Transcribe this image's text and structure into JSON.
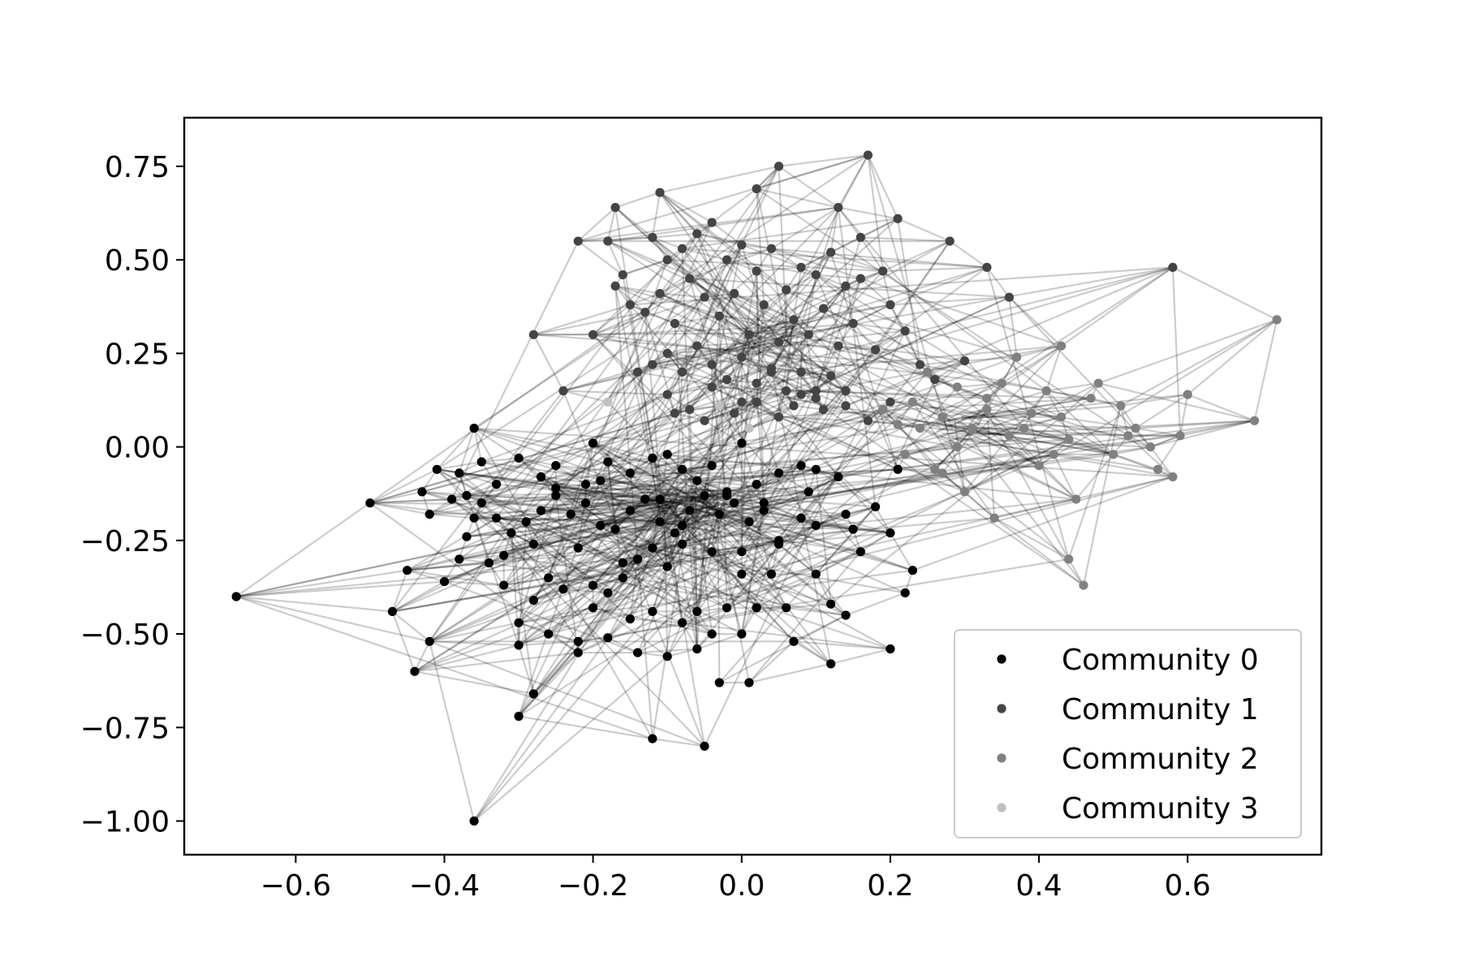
{
  "chart_data": {
    "type": "scatter",
    "subtype": "network-graph",
    "title": "",
    "xlabel": "",
    "ylabel": "",
    "xlim": [
      -0.75,
      0.78
    ],
    "ylim": [
      -1.09,
      0.88
    ],
    "xticks": [
      -0.6,
      -0.4,
      -0.2,
      0.0,
      0.2,
      0.4,
      0.6
    ],
    "xtick_labels": [
      "−0.6",
      "−0.4",
      "−0.2",
      "0.0",
      "0.2",
      "0.4",
      "0.6"
    ],
    "yticks": [
      0.75,
      0.5,
      0.25,
      0.0,
      -0.25,
      -0.5,
      -0.75,
      -1.0
    ],
    "ytick_labels": [
      "0.75",
      "0.50",
      "0.25",
      "0.00",
      "−0.25",
      "−0.50",
      "−0.75",
      "−1.00"
    ],
    "grid": false,
    "legend_position": "lower-right",
    "edge_color": "#000000",
    "series": [
      {
        "name": "Community 0",
        "color": "#000000",
        "x": [
          -0.68,
          -0.5,
          -0.36,
          -0.41,
          -0.38,
          -0.35,
          -0.33,
          -0.3,
          -0.27,
          -0.25,
          -0.21,
          -0.2,
          -0.18,
          -0.15,
          -0.12,
          -0.1,
          -0.08,
          -0.06,
          -0.04,
          -0.02,
          0.0,
          0.02,
          0.05,
          0.08,
          0.1,
          -0.42,
          -0.45,
          -0.47,
          -0.44,
          -0.42,
          -0.4,
          -0.37,
          -0.36,
          -0.34,
          -0.32,
          -0.3,
          -0.28,
          -0.26,
          -0.24,
          -0.22,
          -0.2,
          -0.18,
          -0.16,
          -0.14,
          -0.12,
          -0.1,
          -0.08,
          -0.06,
          -0.04,
          -0.02,
          0.0,
          0.02,
          0.04,
          0.06,
          0.08,
          0.1,
          0.12,
          0.14,
          0.16,
          0.18,
          0.2,
          0.22,
          0.23,
          -0.39,
          -0.37,
          -0.35,
          -0.33,
          -0.31,
          -0.29,
          -0.27,
          -0.25,
          -0.23,
          -0.21,
          -0.19,
          -0.17,
          -0.15,
          -0.13,
          -0.11,
          -0.09,
          -0.07,
          -0.05,
          -0.03,
          -0.01,
          0.01,
          0.03,
          0.05,
          -0.3,
          -0.28,
          -0.26,
          -0.22,
          -0.18,
          -0.14,
          -0.1,
          -0.06,
          -0.03,
          0.01,
          -0.12,
          -0.05,
          -0.36,
          -0.3,
          -0.22,
          -0.15,
          -0.08,
          0.0,
          0.07,
          0.12,
          0.14,
          0.15,
          0.2,
          -0.2,
          -0.16,
          -0.12,
          -0.08,
          -0.04,
          0.0,
          0.05,
          0.1,
          -0.43,
          -0.38,
          -0.32,
          -0.28,
          -0.25,
          -0.19,
          -0.11,
          -0.02,
          0.03,
          0.09,
          0.13,
          0.21
        ],
        "y": [
          -0.4,
          -0.15,
          0.05,
          -0.06,
          -0.07,
          -0.04,
          -0.1,
          -0.03,
          -0.08,
          -0.05,
          -0.1,
          0.01,
          -0.04,
          -0.07,
          -0.03,
          -0.02,
          -0.06,
          -0.09,
          -0.05,
          -0.12,
          0.01,
          -0.1,
          -0.07,
          -0.05,
          -0.06,
          -0.18,
          -0.33,
          -0.44,
          -0.6,
          -0.52,
          -0.36,
          -0.24,
          -0.19,
          -0.31,
          -0.37,
          -0.47,
          -0.41,
          -0.35,
          -0.38,
          -0.27,
          -0.43,
          -0.39,
          -0.35,
          -0.3,
          -0.44,
          -0.32,
          -0.21,
          -0.44,
          -0.5,
          -0.43,
          -0.34,
          -0.43,
          -0.34,
          -0.43,
          -0.19,
          -0.34,
          -0.42,
          -0.45,
          -0.28,
          -0.16,
          -0.54,
          -0.39,
          -0.33,
          -0.14,
          -0.13,
          -0.15,
          -0.19,
          -0.23,
          -0.2,
          -0.17,
          -0.13,
          -0.18,
          -0.15,
          -0.21,
          -0.22,
          -0.17,
          -0.14,
          -0.2,
          -0.23,
          -0.17,
          -0.13,
          -0.18,
          -0.15,
          -0.2,
          -0.17,
          -0.25,
          -0.72,
          -0.66,
          -0.5,
          -0.55,
          -0.51,
          -0.55,
          -0.56,
          -0.54,
          -0.63,
          -0.63,
          -0.78,
          -0.8,
          -1.0,
          -0.53,
          -0.52,
          -0.46,
          -0.47,
          -0.5,
          -0.52,
          -0.58,
          -0.18,
          -0.22,
          -0.23,
          -0.37,
          -0.31,
          -0.27,
          -0.26,
          -0.28,
          -0.28,
          -0.26,
          -0.21,
          -0.12,
          -0.3,
          -0.29,
          -0.26,
          -0.11,
          -0.09,
          -0.14,
          -0.13,
          -0.15,
          -0.12,
          -0.08,
          -0.06
        ]
      },
      {
        "name": "Community 1",
        "color": "#444444",
        "x": [
          0.17,
          0.05,
          -0.11,
          0.02,
          -0.17,
          -0.22,
          -0.18,
          0.21,
          0.28,
          0.33,
          0.36,
          0.13,
          0.16,
          0.19,
          0.2,
          0.22,
          0.18,
          0.24,
          0.26,
          0.3,
          -0.17,
          -0.2,
          -0.28,
          -0.24,
          -0.15,
          -0.12,
          -0.1,
          -0.08,
          -0.06,
          -0.04,
          -0.02,
          0.0,
          0.02,
          0.04,
          0.06,
          0.08,
          0.1,
          0.12,
          0.14,
          0.16,
          -0.13,
          -0.11,
          -0.09,
          -0.07,
          -0.05,
          -0.03,
          -0.01,
          0.01,
          0.03,
          0.05,
          0.07,
          0.09,
          0.11,
          0.13,
          0.15,
          -0.12,
          -0.1,
          -0.08,
          -0.06,
          -0.04,
          -0.02,
          0.0,
          0.02,
          0.04,
          0.06,
          0.08,
          0.1,
          0.12,
          0.14,
          -0.1,
          -0.07,
          -0.04,
          -0.01,
          0.02,
          0.05,
          0.08,
          0.11,
          0.14,
          0.17,
          0.2,
          0.58,
          -0.16,
          -0.14,
          -0.09,
          -0.05,
          0.0,
          0.04,
          0.07,
          0.1
        ],
        "y": [
          0.78,
          0.75,
          0.68,
          0.69,
          0.64,
          0.55,
          0.55,
          0.61,
          0.55,
          0.48,
          0.4,
          0.64,
          0.56,
          0.47,
          0.38,
          0.31,
          0.26,
          0.22,
          0.18,
          0.23,
          0.43,
          0.3,
          0.3,
          0.15,
          0.38,
          0.56,
          0.5,
          0.53,
          0.57,
          0.6,
          0.5,
          0.54,
          0.47,
          0.53,
          0.42,
          0.48,
          0.46,
          0.52,
          0.43,
          0.45,
          0.36,
          0.41,
          0.33,
          0.45,
          0.4,
          0.35,
          0.41,
          0.3,
          0.38,
          0.28,
          0.34,
          0.3,
          0.37,
          0.27,
          0.33,
          0.22,
          0.25,
          0.2,
          0.27,
          0.22,
          0.18,
          0.24,
          0.17,
          0.21,
          0.15,
          0.2,
          0.13,
          0.19,
          0.11,
          0.14,
          0.1,
          0.16,
          0.09,
          0.12,
          0.08,
          0.14,
          0.1,
          0.15,
          0.07,
          0.12,
          0.48,
          0.46,
          0.2,
          0.09,
          0.07,
          0.12,
          0.2,
          0.11,
          0.15
        ]
      },
      {
        "name": "Community 2",
        "color": "#808080",
        "x": [
          0.72,
          0.69,
          0.6,
          0.59,
          0.58,
          0.55,
          0.53,
          0.51,
          0.48,
          0.45,
          0.43,
          0.41,
          0.39,
          0.37,
          0.35,
          0.33,
          0.31,
          0.29,
          0.27,
          0.25,
          0.23,
          0.21,
          0.19,
          0.44,
          0.46,
          0.44,
          0.42,
          0.38,
          0.34,
          0.3,
          0.26,
          0.5,
          0.56,
          0.52,
          0.47,
          0.43,
          0.4,
          0.36,
          0.33,
          0.29,
          0.27,
          0.24,
          0.22
        ],
        "y": [
          0.34,
          0.07,
          0.14,
          0.03,
          -0.08,
          0.0,
          0.05,
          0.11,
          0.17,
          -0.14,
          0.27,
          0.15,
          0.09,
          0.24,
          0.17,
          0.1,
          0.05,
          0.16,
          0.08,
          0.2,
          0.12,
          0.06,
          0.1,
          -0.3,
          -0.37,
          0.02,
          -0.02,
          0.05,
          -0.19,
          -0.12,
          -0.06,
          -0.02,
          -0.06,
          0.03,
          0.13,
          0.08,
          -0.05,
          0.03,
          0.13,
          0.0,
          -0.07,
          0.05,
          -0.02
        ]
      },
      {
        "name": "Community 3",
        "color": "#bfbfbf",
        "x": [
          -0.03,
          0.01,
          -0.18
        ],
        "y": [
          0.11,
          0.05,
          0.12
        ]
      }
    ]
  }
}
